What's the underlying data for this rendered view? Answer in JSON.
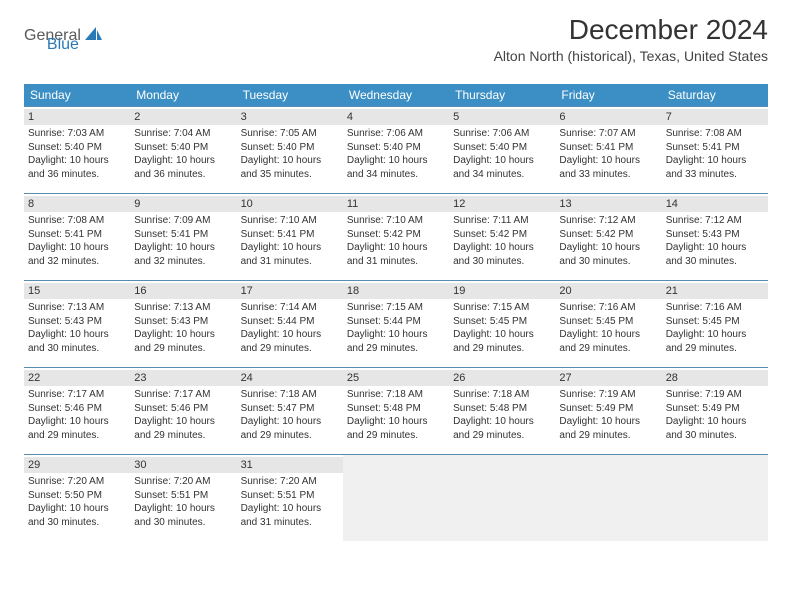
{
  "logo": {
    "part1": "General",
    "part2": "Blue"
  },
  "title": "December 2024",
  "location": "Alton North (historical), Texas, United States",
  "colors": {
    "header_bg": "#3b8fc4",
    "header_text": "#ffffff",
    "week_border": "#5a8bb0",
    "daynum_bg": "#e6e6e6",
    "empty_bg": "#f0f0f0",
    "logo_gray": "#5a5a5a",
    "logo_blue": "#2a7ab8"
  },
  "weekdays": [
    "Sunday",
    "Monday",
    "Tuesday",
    "Wednesday",
    "Thursday",
    "Friday",
    "Saturday"
  ],
  "first_weekday_index": 0,
  "days": [
    {
      "n": 1,
      "sunrise": "7:03 AM",
      "sunset": "5:40 PM",
      "day_h": 10,
      "day_m": 36
    },
    {
      "n": 2,
      "sunrise": "7:04 AM",
      "sunset": "5:40 PM",
      "day_h": 10,
      "day_m": 36
    },
    {
      "n": 3,
      "sunrise": "7:05 AM",
      "sunset": "5:40 PM",
      "day_h": 10,
      "day_m": 35
    },
    {
      "n": 4,
      "sunrise": "7:06 AM",
      "sunset": "5:40 PM",
      "day_h": 10,
      "day_m": 34
    },
    {
      "n": 5,
      "sunrise": "7:06 AM",
      "sunset": "5:40 PM",
      "day_h": 10,
      "day_m": 34
    },
    {
      "n": 6,
      "sunrise": "7:07 AM",
      "sunset": "5:41 PM",
      "day_h": 10,
      "day_m": 33
    },
    {
      "n": 7,
      "sunrise": "7:08 AM",
      "sunset": "5:41 PM",
      "day_h": 10,
      "day_m": 33
    },
    {
      "n": 8,
      "sunrise": "7:08 AM",
      "sunset": "5:41 PM",
      "day_h": 10,
      "day_m": 32
    },
    {
      "n": 9,
      "sunrise": "7:09 AM",
      "sunset": "5:41 PM",
      "day_h": 10,
      "day_m": 32
    },
    {
      "n": 10,
      "sunrise": "7:10 AM",
      "sunset": "5:41 PM",
      "day_h": 10,
      "day_m": 31
    },
    {
      "n": 11,
      "sunrise": "7:10 AM",
      "sunset": "5:42 PM",
      "day_h": 10,
      "day_m": 31
    },
    {
      "n": 12,
      "sunrise": "7:11 AM",
      "sunset": "5:42 PM",
      "day_h": 10,
      "day_m": 30
    },
    {
      "n": 13,
      "sunrise": "7:12 AM",
      "sunset": "5:42 PM",
      "day_h": 10,
      "day_m": 30
    },
    {
      "n": 14,
      "sunrise": "7:12 AM",
      "sunset": "5:43 PM",
      "day_h": 10,
      "day_m": 30
    },
    {
      "n": 15,
      "sunrise": "7:13 AM",
      "sunset": "5:43 PM",
      "day_h": 10,
      "day_m": 30
    },
    {
      "n": 16,
      "sunrise": "7:13 AM",
      "sunset": "5:43 PM",
      "day_h": 10,
      "day_m": 29
    },
    {
      "n": 17,
      "sunrise": "7:14 AM",
      "sunset": "5:44 PM",
      "day_h": 10,
      "day_m": 29
    },
    {
      "n": 18,
      "sunrise": "7:15 AM",
      "sunset": "5:44 PM",
      "day_h": 10,
      "day_m": 29
    },
    {
      "n": 19,
      "sunrise": "7:15 AM",
      "sunset": "5:45 PM",
      "day_h": 10,
      "day_m": 29
    },
    {
      "n": 20,
      "sunrise": "7:16 AM",
      "sunset": "5:45 PM",
      "day_h": 10,
      "day_m": 29
    },
    {
      "n": 21,
      "sunrise": "7:16 AM",
      "sunset": "5:45 PM",
      "day_h": 10,
      "day_m": 29
    },
    {
      "n": 22,
      "sunrise": "7:17 AM",
      "sunset": "5:46 PM",
      "day_h": 10,
      "day_m": 29
    },
    {
      "n": 23,
      "sunrise": "7:17 AM",
      "sunset": "5:46 PM",
      "day_h": 10,
      "day_m": 29
    },
    {
      "n": 24,
      "sunrise": "7:18 AM",
      "sunset": "5:47 PM",
      "day_h": 10,
      "day_m": 29
    },
    {
      "n": 25,
      "sunrise": "7:18 AM",
      "sunset": "5:48 PM",
      "day_h": 10,
      "day_m": 29
    },
    {
      "n": 26,
      "sunrise": "7:18 AM",
      "sunset": "5:48 PM",
      "day_h": 10,
      "day_m": 29
    },
    {
      "n": 27,
      "sunrise": "7:19 AM",
      "sunset": "5:49 PM",
      "day_h": 10,
      "day_m": 29
    },
    {
      "n": 28,
      "sunrise": "7:19 AM",
      "sunset": "5:49 PM",
      "day_h": 10,
      "day_m": 30
    },
    {
      "n": 29,
      "sunrise": "7:20 AM",
      "sunset": "5:50 PM",
      "day_h": 10,
      "day_m": 30
    },
    {
      "n": 30,
      "sunrise": "7:20 AM",
      "sunset": "5:51 PM",
      "day_h": 10,
      "day_m": 30
    },
    {
      "n": 31,
      "sunrise": "7:20 AM",
      "sunset": "5:51 PM",
      "day_h": 10,
      "day_m": 31
    }
  ],
  "labels": {
    "sunrise_prefix": "Sunrise: ",
    "sunset_prefix": "Sunset: ",
    "daylight_prefix": "Daylight: ",
    "hours_word": " hours",
    "and_word": " and ",
    "minutes_word": " minutes."
  }
}
